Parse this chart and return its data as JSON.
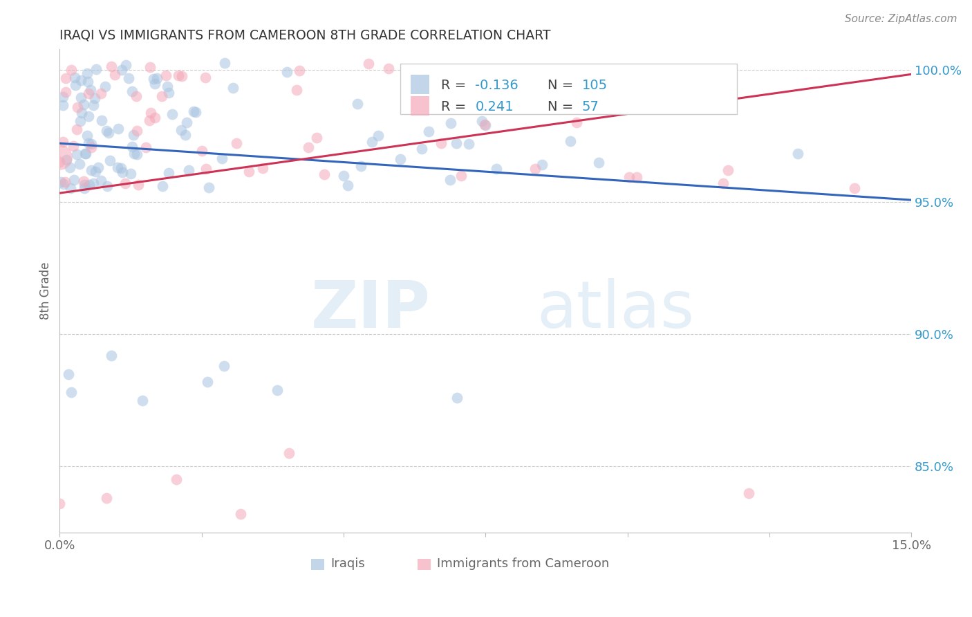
{
  "title": "IRAQI VS IMMIGRANTS FROM CAMEROON 8TH GRADE CORRELATION CHART",
  "source_text": "Source: ZipAtlas.com",
  "ylabel": "8th Grade",
  "xlim": [
    0.0,
    0.15
  ],
  "ylim": [
    0.825,
    1.008
  ],
  "right_yticks": [
    0.85,
    0.9,
    0.95,
    1.0
  ],
  "right_yticklabels": [
    "85.0%",
    "90.0%",
    "95.0%",
    "100.0%"
  ],
  "blue_color": "#a8c4e0",
  "pink_color": "#f4a8b8",
  "blue_line_color": "#3366bb",
  "pink_line_color": "#cc3355",
  "blue_r": -0.136,
  "pink_r": 0.241,
  "blue_n": 105,
  "pink_n": 57,
  "legend_r1_val": "-0.136",
  "legend_n1_val": "105",
  "legend_r2_val": "0.241",
  "legend_n2_val": "57",
  "accent_color": "#3399cc",
  "title_color": "#333333",
  "label_color": "#666666",
  "grid_color": "#cccccc",
  "right_axis_color": "#3399cc"
}
